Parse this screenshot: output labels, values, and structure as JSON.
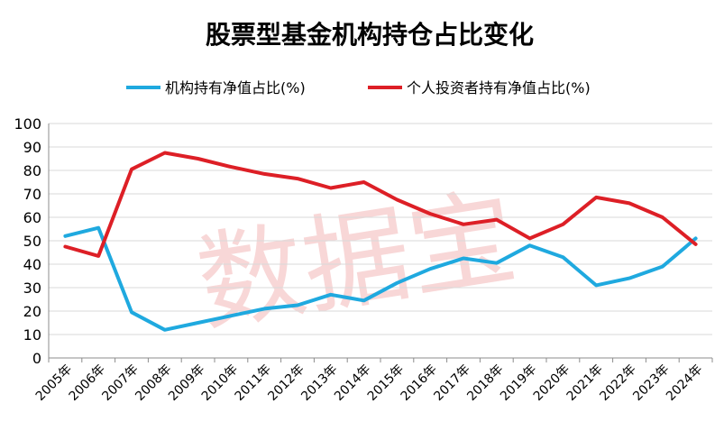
{
  "chart_data": {
    "type": "line",
    "title": "股票型基金机构持仓占比变化",
    "xlabel": "",
    "ylabel": "",
    "ylim": [
      0,
      100
    ],
    "yticks": [
      0,
      10,
      20,
      30,
      40,
      50,
      60,
      70,
      80,
      90,
      100
    ],
    "grid": true,
    "legend_position": "top",
    "categories": [
      "2005年",
      "2006年",
      "2007年",
      "2008年",
      "2009年",
      "2010年",
      "2011年",
      "2012年",
      "2013年",
      "2014年",
      "2015年",
      "2016年",
      "2017年",
      "2018年",
      "2019年",
      "2020年",
      "2021年",
      "2022年",
      "2023年",
      "2024年"
    ],
    "series": [
      {
        "name": "机构持有净值占比(%)",
        "color": "#1fa9df",
        "values": [
          52,
          55.5,
          19.5,
          12,
          15,
          18,
          21,
          22.5,
          27,
          24.5,
          32,
          38,
          42.5,
          40.5,
          48,
          43,
          31,
          34,
          39,
          51
        ]
      },
      {
        "name": "个人投资者持有净值占比(%)",
        "color": "#dd1f26",
        "values": [
          47.5,
          43.5,
          80.5,
          87.5,
          85,
          81.5,
          78.5,
          76.5,
          72.5,
          75,
          67.5,
          61.5,
          57,
          59,
          51,
          57,
          68.5,
          66,
          60,
          48.5
        ]
      }
    ]
  },
  "watermark": "数据宝"
}
